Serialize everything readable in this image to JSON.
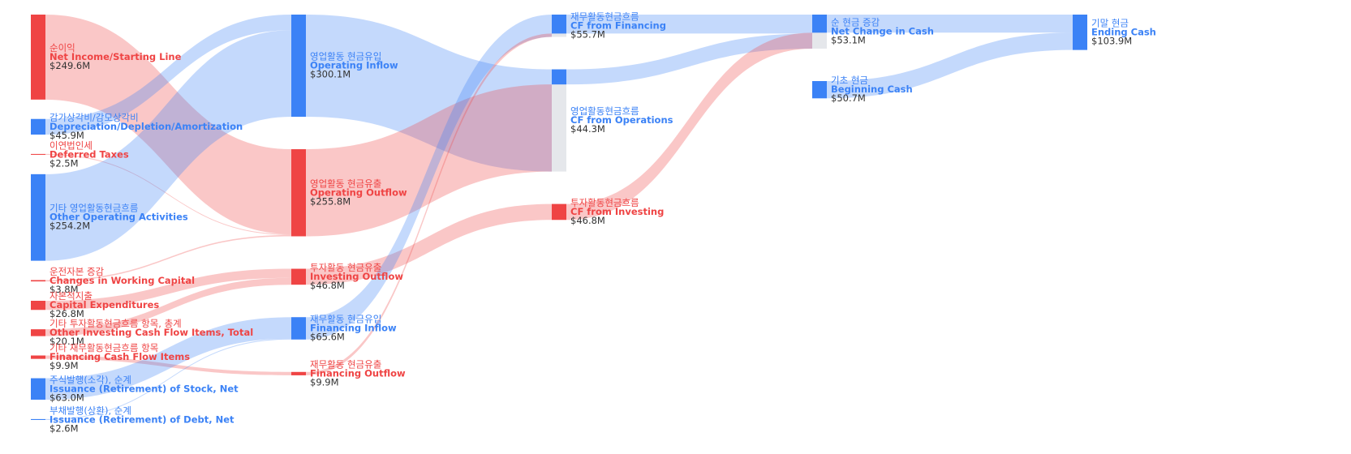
{
  "chart_data": {
    "type": "sankey",
    "nodes": [
      {
        "label_ko": "순이익",
        "label_en": "Net Income/Starting Line",
        "value": 249.6,
        "value_label": "$249.6M",
        "color": "#ef4444"
      },
      {
        "label_ko": "감가상각비/감모상각비",
        "label_en": "Depreciation/Depletion/Amortization",
        "value": 45.9,
        "value_label": "$45.9M",
        "color": "#3b82f6"
      },
      {
        "label_ko": "이연법인세",
        "label_en": "Deferred Taxes",
        "value": 2.5,
        "value_label": "$2.5M",
        "color": "#ef4444"
      },
      {
        "label_ko": "기타 영업활동현금흐름",
        "label_en": "Other Operating Activities",
        "value": 254.2,
        "value_label": "$254.2M",
        "color": "#3b82f6"
      },
      {
        "label_ko": "운전자본 증감",
        "label_en": "Changes in Working Capital",
        "value": 3.8,
        "value_label": "$3.8M",
        "color": "#ef4444"
      },
      {
        "label_ko": "자본적지출",
        "label_en": "Capital Expenditures",
        "value": 26.8,
        "value_label": "$26.8M",
        "color": "#ef4444"
      },
      {
        "label_ko": "기타 투자활동현금흐름 항목, 총계",
        "label_en": "Other Investing Cash Flow Items, Total",
        "value": 20.1,
        "value_label": "$20.1M",
        "color": "#ef4444"
      },
      {
        "label_ko": "기타 재무활동현금흐름 항목",
        "label_en": "Financing Cash Flow Items",
        "value": 9.9,
        "value_label": "$9.9M",
        "color": "#ef4444"
      },
      {
        "label_ko": "주식발행(소각), 순계",
        "label_en": "Issuance (Retirement) of Stock, Net",
        "value": 63.0,
        "value_label": "$63.0M",
        "color": "#3b82f6"
      },
      {
        "label_ko": "부채발행(상환), 순계",
        "label_en": "Issuance (Retirement) of Debt, Net",
        "value": 2.6,
        "value_label": "$2.6M",
        "color": "#3b82f6"
      },
      {
        "label_ko": "영업활동 현금유입",
        "label_en": "Operating Inflow",
        "value": 300.1,
        "value_label": "$300.1M",
        "color": "#3b82f6"
      },
      {
        "label_ko": "영업활동 현금유출",
        "label_en": "Operating Outflow",
        "value": 255.8,
        "value_label": "$255.8M",
        "color": "#ef4444"
      },
      {
        "label_ko": "투자활동 현금유출",
        "label_en": "Investing Outflow",
        "value": 46.8,
        "value_label": "$46.8M",
        "color": "#ef4444"
      },
      {
        "label_ko": "재무활동 현금유입",
        "label_en": "Financing Inflow",
        "value": 65.6,
        "value_label": "$65.6M",
        "color": "#3b82f6"
      },
      {
        "label_ko": "재무활동 현금유출",
        "label_en": "Financing Outflow",
        "value": 9.9,
        "value_label": "$9.9M",
        "color": "#ef4444"
      },
      {
        "label_ko": "재무활동현금흐름",
        "label_en": "CF from Financing",
        "value": 55.7,
        "value_label": "$55.7M",
        "color": "#3b82f6"
      },
      {
        "label_ko": "영업활동현금흐름",
        "label_en": "CF from Operations",
        "value": 44.3,
        "value_label": "$44.3M",
        "color": "#3b82f6"
      },
      {
        "label_ko": "투자활동현금흐름",
        "label_en": "CF from Investing",
        "value": 46.8,
        "value_label": "$46.8M",
        "color": "#ef4444"
      },
      {
        "label_ko": "순 현금 증감",
        "label_en": "Net Change in Cash",
        "value": 53.1,
        "value_label": "$53.1M",
        "color": "#3b82f6"
      },
      {
        "label_ko": "기초 현금",
        "label_en": "Beginning Cash",
        "value": 50.7,
        "value_label": "$50.7M",
        "color": "#3b82f6"
      },
      {
        "label_ko": "기말 현금",
        "label_en": "Ending Cash",
        "value": 103.9,
        "value_label": "$103.9M",
        "color": "#3b82f6"
      }
    ],
    "links": [
      {
        "source": 0,
        "target": 11,
        "value": 249.6
      },
      {
        "source": 1,
        "target": 10,
        "value": 45.9
      },
      {
        "source": 2,
        "target": 11,
        "value": 2.5
      },
      {
        "source": 3,
        "target": 10,
        "value": 254.2
      },
      {
        "source": 4,
        "target": 11,
        "value": 3.8
      },
      {
        "source": 5,
        "target": 12,
        "value": 26.8
      },
      {
        "source": 6,
        "target": 12,
        "value": 20.1
      },
      {
        "source": 7,
        "target": 14,
        "value": 9.9
      },
      {
        "source": 8,
        "target": 13,
        "value": 63.0
      },
      {
        "source": 9,
        "target": 13,
        "value": 2.6
      },
      {
        "source": 10,
        "target": 16,
        "value": 300.1
      },
      {
        "source": 11,
        "target": 16,
        "value": 255.8
      },
      {
        "source": 12,
        "target": 17,
        "value": 46.8
      },
      {
        "source": 13,
        "target": 15,
        "value": 65.6
      },
      {
        "source": 14,
        "target": 15,
        "value": 9.9
      },
      {
        "source": 15,
        "target": 18,
        "value": 55.7
      },
      {
        "source": 16,
        "target": 18,
        "value": 44.3
      },
      {
        "source": 17,
        "target": 18,
        "value": 46.8
      },
      {
        "source": 18,
        "target": 20,
        "value": 53.1
      },
      {
        "source": 19,
        "target": 20,
        "value": 50.7
      }
    ]
  }
}
